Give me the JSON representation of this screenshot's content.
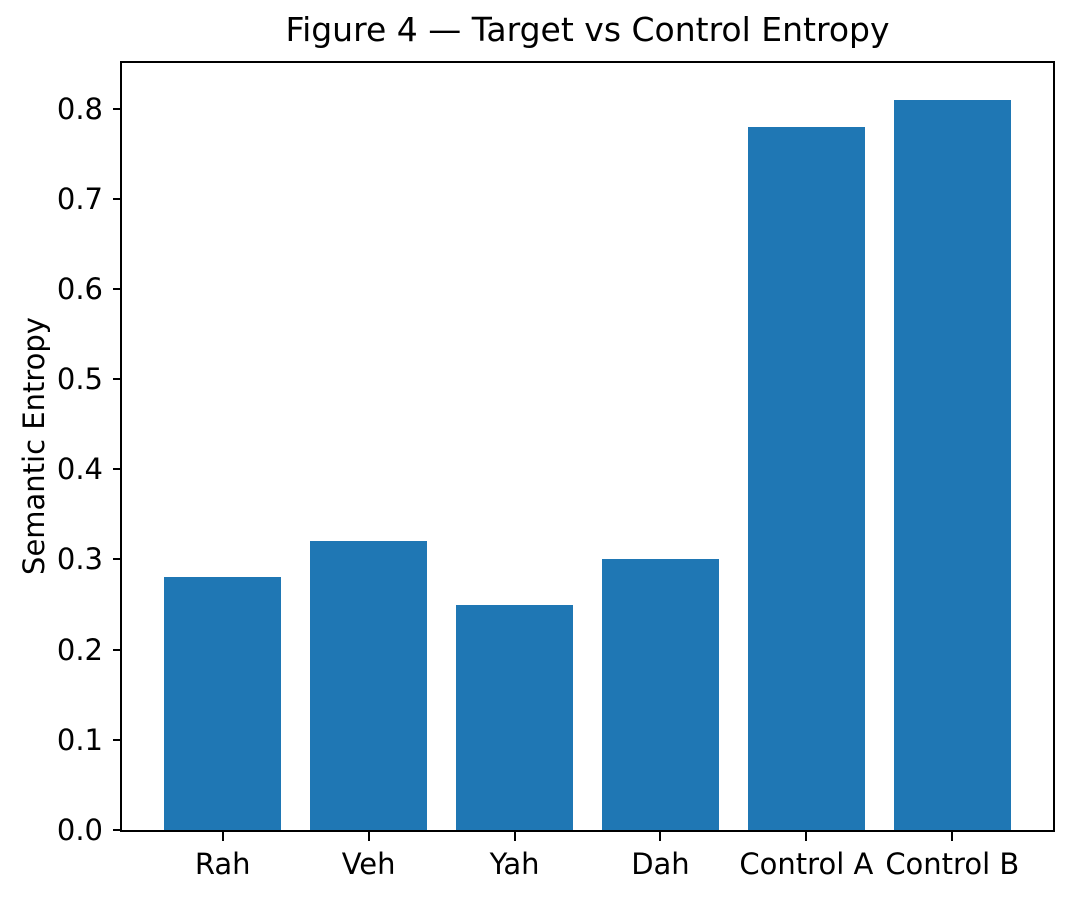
{
  "chart_data": {
    "type": "bar",
    "title": "Figure 4 — Target vs Control Entropy",
    "xlabel": "",
    "ylabel": "Semantic Entropy",
    "categories": [
      "Rah",
      "Veh",
      "Yah",
      "Dah",
      "Control A",
      "Control B"
    ],
    "values": [
      0.28,
      0.32,
      0.25,
      0.3,
      0.78,
      0.81
    ],
    "yticks": [
      {
        "value": 0.0,
        "label": "0.0"
      },
      {
        "value": 0.1,
        "label": "0.1"
      },
      {
        "value": 0.2,
        "label": "0.2"
      },
      {
        "value": 0.3,
        "label": "0.3"
      },
      {
        "value": 0.4,
        "label": "0.4"
      },
      {
        "value": 0.5,
        "label": "0.5"
      },
      {
        "value": 0.6,
        "label": "0.6"
      },
      {
        "value": 0.7,
        "label": "0.7"
      },
      {
        "value": 0.8,
        "label": "0.8"
      }
    ],
    "ylim": [
      0,
      0.8505
    ],
    "xlim": [
      -0.69,
      5.69
    ],
    "bar_width": 0.8,
    "bar_color": "#1f77b4",
    "axis_color": "#000000",
    "text_color": "#000000",
    "background_color": "#ffffff",
    "grid": false,
    "legend": "none"
  }
}
